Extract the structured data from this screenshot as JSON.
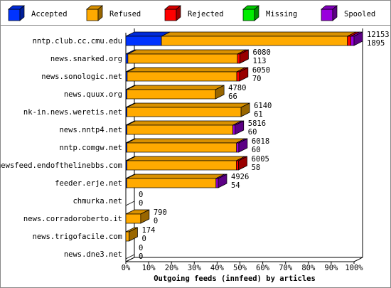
{
  "chart_data": {
    "type": "bar3d",
    "xlabel": "Outgoing feeds (innfeed) by articles",
    "categories": [
      "nntp.club.cc.cmu.edu",
      "news.snarked.org",
      "news.sonologic.net",
      "news.quux.org",
      "nk-in.news.weretis.net",
      "news.nntp4.net",
      "nntp.comgw.net",
      "newsfeed.endofthelinebbs.com",
      "feeder.erje.net",
      "chmurka.net",
      "news.corradoroberto.it",
      "news.trigofacile.com",
      "news.dne3.net"
    ],
    "series": [
      {
        "name": "Accepted",
        "color": "#0033ff",
        "values": [
          15.6,
          0.9,
          0.6,
          0.5,
          0.5,
          0.5,
          0.5,
          0.5,
          0.4,
          0,
          0,
          0,
          0
        ]
      },
      {
        "name": "Refused",
        "color": "#ffaa00",
        "values": [
          81.5,
          48,
          48,
          38.8,
          50,
          46.4,
          48,
          47.9,
          39.1,
          0,
          6.5,
          1.4,
          0
        ]
      },
      {
        "name": "Rejected",
        "color": "#ff0000",
        "values": [
          1.5,
          1.1,
          1.2,
          0,
          0,
          0,
          0,
          1,
          0,
          0,
          0,
          0,
          0
        ]
      },
      {
        "name": "Missing",
        "color": "#00ee00",
        "values": [
          0,
          0,
          0,
          0,
          0,
          0,
          0,
          0,
          0,
          0,
          0,
          0,
          0
        ]
      },
      {
        "name": "Spooled",
        "color": "#9900dd",
        "values": [
          1.4,
          0,
          0,
          0,
          0,
          1,
          1,
          0,
          1,
          0,
          0,
          0,
          0
        ]
      }
    ],
    "offered": [
      12153,
      6080,
      6050,
      4780,
      6140,
      5816,
      6018,
      6005,
      4926,
      0,
      790,
      174,
      0
    ],
    "accepted": [
      1895,
      113,
      70,
      66,
      61,
      60,
      60,
      58,
      54,
      0,
      0,
      0,
      0
    ],
    "xlim": [
      0,
      100
    ],
    "xticks": [
      {
        "value": 0,
        "label": "0%"
      },
      {
        "value": 10,
        "label": "10%"
      },
      {
        "value": 20,
        "label": "20%"
      },
      {
        "value": 30,
        "label": "30%"
      },
      {
        "value": 40,
        "label": "40%"
      },
      {
        "value": 50,
        "label": "50%"
      },
      {
        "value": 60,
        "label": "60%"
      },
      {
        "value": 70,
        "label": "70%"
      },
      {
        "value": 80,
        "label": "80%"
      },
      {
        "value": 90,
        "label": "90%"
      },
      {
        "value": 100,
        "label": "100%"
      }
    ]
  }
}
